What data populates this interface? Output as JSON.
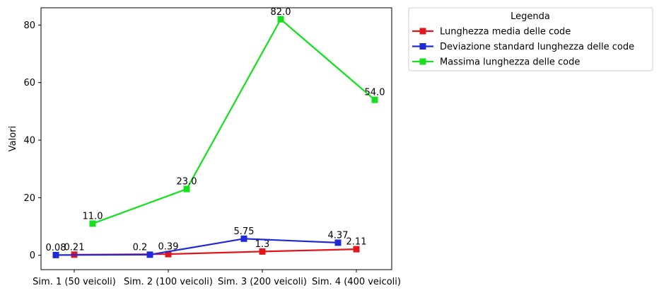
{
  "chart_data": {
    "type": "line",
    "categories": [
      "Sim. 1 (50 veicoli)",
      "Sim. 2 (100 veicoli)",
      "Sim. 3 (200 veicoli)",
      "Sim. 4 (400 veicoli)"
    ],
    "ylabel": "Valori",
    "ylim": [
      -5,
      86
    ],
    "yticks": [
      0,
      20,
      40,
      60,
      80
    ],
    "grid": false,
    "legend": {
      "title": "Legenda",
      "placement": "outside-top-right"
    },
    "series": [
      {
        "name": "Lunghezza media delle code",
        "color": "#e0161c",
        "values": [
          0.21,
          0.39,
          1.3,
          2.11
        ],
        "labels": [
          "0.21",
          "0.39",
          "1.3",
          "2.11"
        ]
      },
      {
        "name": "Deviazione standard lunghezza delle code",
        "color": "#1f2ad6",
        "values": [
          0.08,
          0.2,
          5.75,
          4.37
        ],
        "labels": [
          "0.08",
          "0.2",
          "5.75",
          "4.37"
        ]
      },
      {
        "name": "Massima lunghezza delle code",
        "color": "#16e01d",
        "values": [
          11.0,
          23.0,
          82.0,
          54.0
        ],
        "labels": [
          "11.0",
          "23.0",
          "82.0",
          "54.0"
        ]
      }
    ]
  }
}
